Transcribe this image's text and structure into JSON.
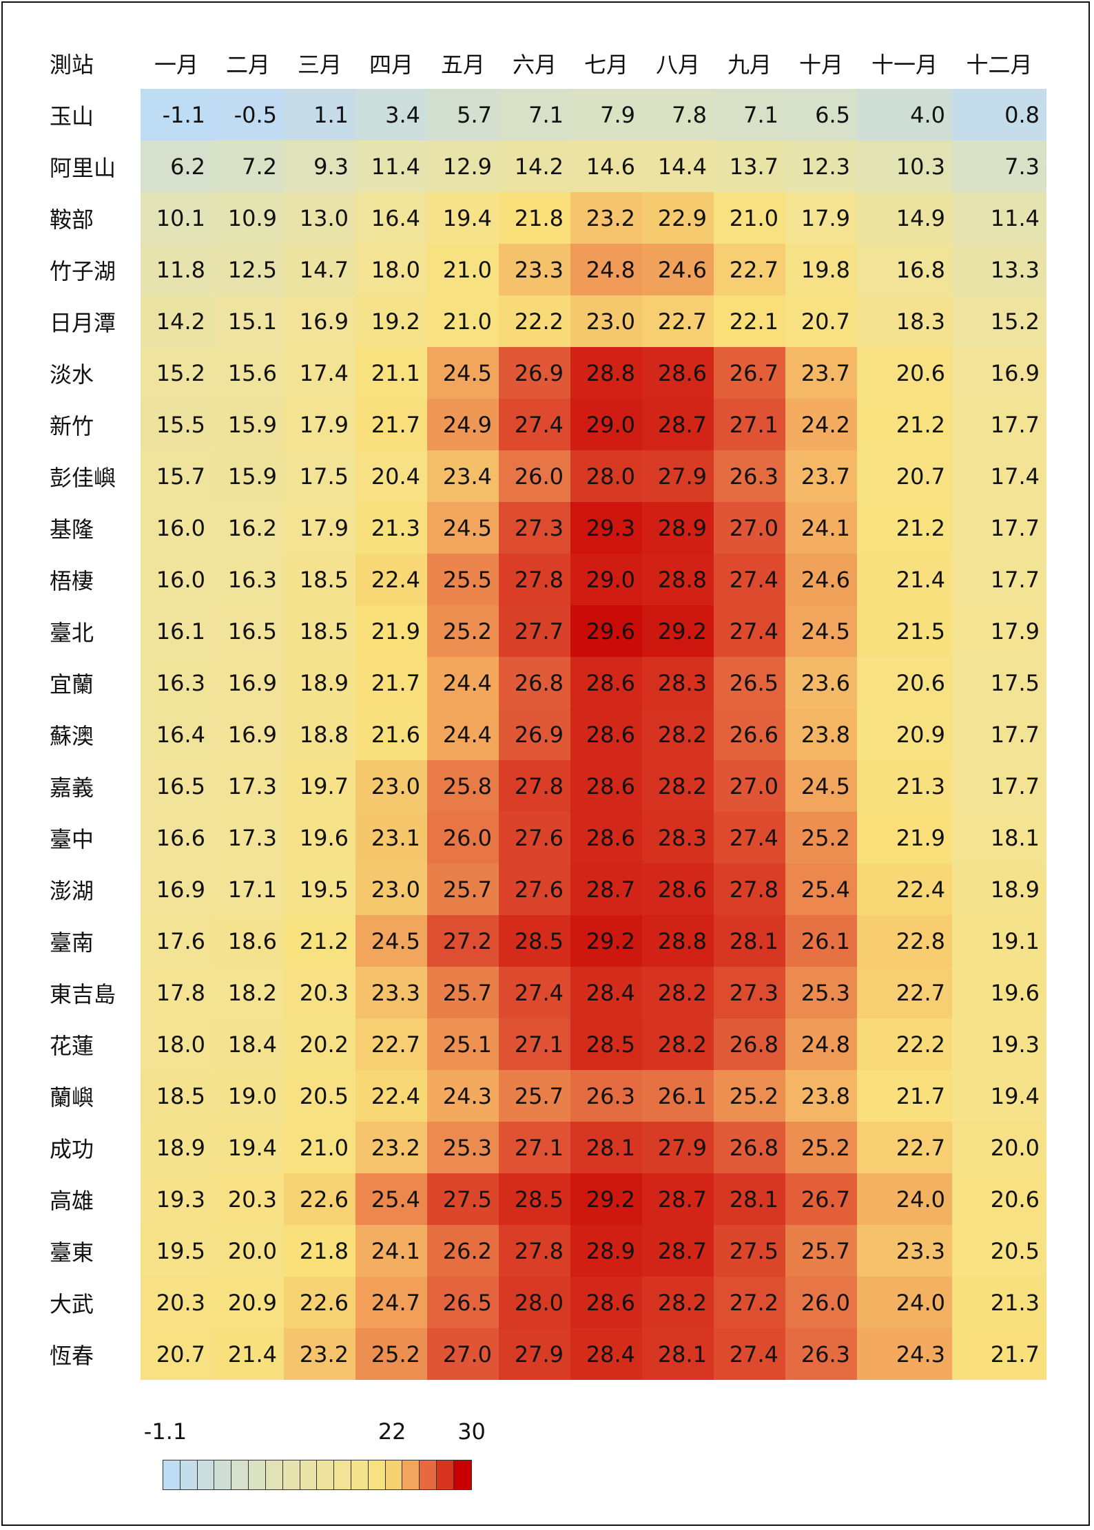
{
  "chart_data": {
    "type": "heatmap",
    "row_header": "測站",
    "columns": [
      "一月",
      "二月",
      "三月",
      "四月",
      "五月",
      "六月",
      "七月",
      "八月",
      "九月",
      "十月",
      "十一月",
      "十二月"
    ],
    "rows": [
      {
        "name": "玉山",
        "values": [
          -1.1,
          -0.5,
          1.1,
          3.4,
          5.7,
          7.1,
          7.9,
          7.8,
          7.1,
          6.5,
          4.0,
          0.8
        ]
      },
      {
        "name": "阿里山",
        "values": [
          6.2,
          7.2,
          9.3,
          11.4,
          12.9,
          14.2,
          14.6,
          14.4,
          13.7,
          12.3,
          10.3,
          7.3
        ]
      },
      {
        "name": "鞍部",
        "values": [
          10.1,
          10.9,
          13.0,
          16.4,
          19.4,
          21.8,
          23.2,
          22.9,
          21.0,
          17.9,
          14.9,
          11.4
        ]
      },
      {
        "name": "竹子湖",
        "values": [
          11.8,
          12.5,
          14.7,
          18.0,
          21.0,
          23.3,
          24.8,
          24.6,
          22.7,
          19.8,
          16.8,
          13.3
        ]
      },
      {
        "name": "日月潭",
        "values": [
          14.2,
          15.1,
          16.9,
          19.2,
          21.0,
          22.2,
          23.0,
          22.7,
          22.1,
          20.7,
          18.3,
          15.2
        ]
      },
      {
        "name": "淡水",
        "values": [
          15.2,
          15.6,
          17.4,
          21.1,
          24.5,
          26.9,
          28.8,
          28.6,
          26.7,
          23.7,
          20.6,
          16.9
        ]
      },
      {
        "name": "新竹",
        "values": [
          15.5,
          15.9,
          17.9,
          21.7,
          24.9,
          27.4,
          29.0,
          28.7,
          27.1,
          24.2,
          21.2,
          17.7
        ]
      },
      {
        "name": "彭佳嶼",
        "values": [
          15.7,
          15.9,
          17.5,
          20.4,
          23.4,
          26.0,
          28.0,
          27.9,
          26.3,
          23.7,
          20.7,
          17.4
        ]
      },
      {
        "name": "基隆",
        "values": [
          16.0,
          16.2,
          17.9,
          21.3,
          24.5,
          27.3,
          29.3,
          28.9,
          27.0,
          24.1,
          21.2,
          17.7
        ]
      },
      {
        "name": "梧棲",
        "values": [
          16.0,
          16.3,
          18.5,
          22.4,
          25.5,
          27.8,
          29.0,
          28.8,
          27.4,
          24.6,
          21.4,
          17.7
        ]
      },
      {
        "name": "臺北",
        "values": [
          16.1,
          16.5,
          18.5,
          21.9,
          25.2,
          27.7,
          29.6,
          29.2,
          27.4,
          24.5,
          21.5,
          17.9
        ]
      },
      {
        "name": "宜蘭",
        "values": [
          16.3,
          16.9,
          18.9,
          21.7,
          24.4,
          26.8,
          28.6,
          28.3,
          26.5,
          23.6,
          20.6,
          17.5
        ]
      },
      {
        "name": "蘇澳",
        "values": [
          16.4,
          16.9,
          18.8,
          21.6,
          24.4,
          26.9,
          28.6,
          28.2,
          26.6,
          23.8,
          20.9,
          17.7
        ]
      },
      {
        "name": "嘉義",
        "values": [
          16.5,
          17.3,
          19.7,
          23.0,
          25.8,
          27.8,
          28.6,
          28.2,
          27.0,
          24.5,
          21.3,
          17.7
        ]
      },
      {
        "name": "臺中",
        "values": [
          16.6,
          17.3,
          19.6,
          23.1,
          26.0,
          27.6,
          28.6,
          28.3,
          27.4,
          25.2,
          21.9,
          18.1
        ]
      },
      {
        "name": "澎湖",
        "values": [
          16.9,
          17.1,
          19.5,
          23.0,
          25.7,
          27.6,
          28.7,
          28.6,
          27.8,
          25.4,
          22.4,
          18.9
        ]
      },
      {
        "name": "臺南",
        "values": [
          17.6,
          18.6,
          21.2,
          24.5,
          27.2,
          28.5,
          29.2,
          28.8,
          28.1,
          26.1,
          22.8,
          19.1
        ]
      },
      {
        "name": "東吉島",
        "values": [
          17.8,
          18.2,
          20.3,
          23.3,
          25.7,
          27.4,
          28.4,
          28.2,
          27.3,
          25.3,
          22.7,
          19.6
        ]
      },
      {
        "name": "花蓮",
        "values": [
          18.0,
          18.4,
          20.2,
          22.7,
          25.1,
          27.1,
          28.5,
          28.2,
          26.8,
          24.8,
          22.2,
          19.3
        ]
      },
      {
        "name": "蘭嶼",
        "values": [
          18.5,
          19.0,
          20.5,
          22.4,
          24.3,
          25.7,
          26.3,
          26.1,
          25.2,
          23.8,
          21.7,
          19.4
        ]
      },
      {
        "name": "成功",
        "values": [
          18.9,
          19.4,
          21.0,
          23.2,
          25.3,
          27.1,
          28.1,
          27.9,
          26.8,
          25.2,
          22.7,
          20.0
        ]
      },
      {
        "name": "高雄",
        "values": [
          19.3,
          20.3,
          22.6,
          25.4,
          27.5,
          28.5,
          29.2,
          28.7,
          28.1,
          26.7,
          24.0,
          20.6
        ]
      },
      {
        "name": "臺東",
        "values": [
          19.5,
          20.0,
          21.8,
          24.1,
          26.2,
          27.8,
          28.9,
          28.7,
          27.5,
          25.7,
          23.3,
          20.5
        ]
      },
      {
        "name": "大武",
        "values": [
          20.3,
          20.9,
          22.6,
          24.7,
          26.5,
          28.0,
          28.6,
          28.2,
          27.2,
          26.0,
          24.0,
          21.3
        ]
      },
      {
        "name": "恆春",
        "values": [
          20.7,
          21.4,
          23.2,
          25.2,
          27.0,
          27.9,
          28.4,
          28.1,
          27.4,
          26.3,
          24.3,
          21.7
        ]
      }
    ],
    "color_scale": {
      "min": -1.1,
      "mid": 22,
      "max": 30,
      "min_label": "-1.1",
      "mid_label": "22",
      "max_label": "30",
      "min_color": "#bfdcf5",
      "mid_color": "#f9e07a",
      "max_color": "#c80000"
    },
    "legend": {
      "steps": 18,
      "placement": "bottom-left"
    }
  }
}
